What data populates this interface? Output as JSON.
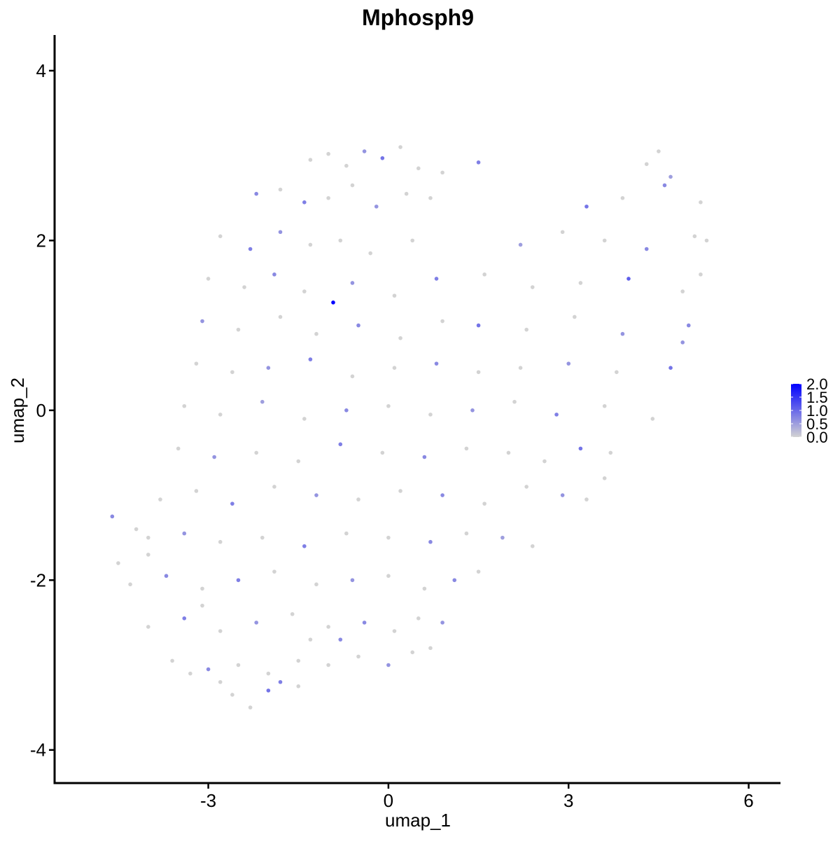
{
  "chart_data": {
    "type": "scatter",
    "title": "Mphosph9",
    "x_label": "umap_1",
    "y_label": "umap_2",
    "xlim": [
      -5.56,
      6.53
    ],
    "ylim": [
      -4.39,
      4.42
    ],
    "xticks": [
      -3,
      0,
      3,
      6
    ],
    "yticks": [
      -4,
      -2,
      0,
      2,
      4
    ],
    "x": [
      -1.3,
      -1.0,
      -0.7,
      -0.4,
      -0.1,
      0.2,
      0.5,
      0.9,
      4.3,
      4.5,
      4.7,
      1.5,
      -2.2,
      -1.8,
      -1.4,
      -1.0,
      -0.6,
      -0.2,
      0.3,
      0.7,
      3.3,
      3.9,
      4.6,
      5.2,
      -2.8,
      -2.3,
      -1.8,
      -1.3,
      -0.8,
      -0.3,
      0.4,
      2.2,
      2.9,
      3.6,
      4.3,
      5.1,
      -3.0,
      -2.4,
      -1.9,
      -1.4,
      -0.6,
      0.1,
      0.8,
      1.6,
      2.4,
      3.2,
      4.0,
      4.9,
      -3.1,
      -2.5,
      -1.8,
      -1.2,
      -0.5,
      0.2,
      0.9,
      1.5,
      2.3,
      3.1,
      3.9,
      5.0,
      -3.2,
      -2.6,
      -2.0,
      -1.3,
      -0.6,
      0.1,
      0.8,
      1.5,
      2.2,
      3.0,
      3.8,
      4.7,
      -3.4,
      -2.8,
      -2.1,
      -1.4,
      -0.7,
      0.0,
      0.7,
      1.4,
      2.1,
      2.8,
      3.6,
      4.4,
      -3.5,
      -2.9,
      -2.2,
      -1.5,
      -0.8,
      -0.1,
      0.6,
      1.3,
      2.0,
      2.6,
      3.2,
      3.7,
      -3.8,
      -3.2,
      -2.6,
      -1.9,
      -1.2,
      -0.5,
      0.2,
      0.9,
      1.6,
      2.3,
      2.9,
      3.3,
      -4.6,
      -4.0,
      -3.4,
      -2.8,
      -2.1,
      -1.4,
      -0.7,
      0.0,
      0.7,
      1.3,
      1.9,
      2.4,
      -4.3,
      -3.7,
      -3.1,
      -2.5,
      -1.9,
      -1.2,
      -0.6,
      0.0,
      0.6,
      1.1,
      1.5,
      -4.5,
      -4.0,
      -3.4,
      -2.8,
      -2.2,
      -1.6,
      -1.0,
      -0.4,
      0.1,
      0.5,
      0.9,
      -3.1,
      -1.3,
      -3.6,
      -3.0,
      -2.5,
      -2.0,
      -1.5,
      -1.0,
      -0.5,
      0.0,
      0.4,
      -2.8,
      -1.8,
      0.7,
      -2.6,
      -2.3,
      -2.0,
      -1.5,
      -3.3,
      -0.8,
      5.3,
      5.2,
      4.9,
      -4.2,
      -4.0,
      3.6,
      -0.92
    ],
    "y": [
      2.95,
      3.02,
      2.88,
      3.05,
      2.97,
      3.1,
      2.85,
      2.8,
      2.9,
      3.05,
      2.75,
      2.92,
      2.55,
      2.6,
      2.45,
      2.5,
      2.65,
      2.4,
      2.55,
      2.5,
      2.4,
      2.5,
      2.65,
      2.45,
      2.05,
      1.9,
      2.1,
      1.95,
      2.0,
      1.85,
      2.0,
      1.95,
      2.1,
      2.0,
      1.9,
      2.05,
      1.55,
      1.45,
      1.6,
      1.4,
      1.5,
      1.35,
      1.55,
      1.6,
      1.45,
      1.5,
      1.55,
      1.4,
      1.05,
      0.95,
      1.1,
      0.9,
      1.0,
      0.85,
      1.05,
      1.0,
      0.95,
      1.1,
      0.9,
      1.0,
      0.55,
      0.45,
      0.5,
      0.6,
      0.4,
      0.5,
      0.55,
      0.45,
      0.5,
      0.55,
      0.45,
      0.5,
      0.05,
      -0.05,
      0.1,
      -0.1,
      0.0,
      0.05,
      -0.05,
      0.0,
      0.1,
      -0.05,
      0.05,
      -0.1,
      -0.45,
      -0.55,
      -0.5,
      -0.6,
      -0.4,
      -0.5,
      -0.55,
      -0.45,
      -0.5,
      -0.6,
      -0.45,
      -0.5,
      -1.05,
      -0.95,
      -1.1,
      -0.9,
      -1.0,
      -1.05,
      -0.95,
      -1.0,
      -1.1,
      -0.9,
      -1.0,
      -1.05,
      -1.25,
      -1.5,
      -1.45,
      -1.55,
      -1.5,
      -1.6,
      -1.45,
      -1.5,
      -1.55,
      -1.45,
      -1.5,
      -1.6,
      -2.05,
      -1.95,
      -2.1,
      -2.0,
      -1.9,
      -2.05,
      -2.0,
      -1.95,
      -2.1,
      -2.0,
      -1.9,
      -1.8,
      -2.55,
      -2.45,
      -2.6,
      -2.5,
      -2.4,
      -2.55,
      -2.5,
      -2.6,
      -2.45,
      -2.5,
      -2.3,
      -2.7,
      -2.95,
      -3.05,
      -3.0,
      -3.1,
      -2.95,
      -3.0,
      -2.9,
      -3.0,
      -2.85,
      -3.2,
      -3.2,
      -2.8,
      -3.35,
      -3.5,
      -3.3,
      -3.25,
      -3.1,
      -2.7,
      2.0,
      1.6,
      0.8,
      -1.4,
      -1.7,
      -0.8,
      1.27
    ],
    "values": [
      0,
      0,
      0,
      0.6,
      0.9,
      0,
      0,
      0,
      0,
      0,
      0.5,
      0.8,
      0.7,
      0,
      0.8,
      0,
      0,
      0.6,
      0,
      0,
      0.9,
      0,
      0.7,
      0,
      0,
      0.8,
      0.6,
      0,
      0,
      0,
      0,
      0.5,
      0,
      0,
      0.7,
      0,
      0,
      0,
      0.7,
      0,
      0.6,
      0,
      0.8,
      0,
      0,
      0,
      1.1,
      0,
      0.6,
      0,
      0,
      0,
      0.7,
      0,
      0,
      0.9,
      0,
      0,
      0.6,
      0.7,
      0,
      0,
      0.6,
      0.8,
      0,
      0,
      0.7,
      0,
      0,
      0.6,
      0,
      0.9,
      0,
      0,
      0.5,
      0,
      0.7,
      0,
      0,
      0.6,
      0,
      0.8,
      0,
      0,
      0,
      0.6,
      0,
      0,
      0.8,
      0,
      0.7,
      0,
      0,
      0,
      0.9,
      0,
      0,
      0,
      0.8,
      0,
      0.6,
      0,
      0,
      0.7,
      0,
      0,
      0.6,
      0,
      0.7,
      0,
      0.6,
      0,
      0,
      0.8,
      0,
      0,
      0.7,
      0,
      0.5,
      0,
      0,
      0.7,
      0,
      0.8,
      0,
      0,
      0.6,
      0,
      0,
      0.7,
      0,
      0,
      0,
      0.8,
      0,
      0.6,
      0,
      0,
      0.7,
      0,
      0,
      0.6,
      0,
      0,
      0,
      0.7,
      0,
      0,
      0,
      0,
      0,
      0.6,
      0,
      0,
      0.8,
      0,
      0,
      0,
      0.9,
      0,
      0,
      0.7,
      0,
      0,
      0.6,
      0,
      0,
      0,
      2.0
    ],
    "colorbar": {
      "colors": [
        "#d3d3d3",
        "#0000ff"
      ],
      "lim": [
        0,
        2
      ],
      "ticks": [
        {
          "value": 2,
          "label": "2.0"
        },
        {
          "value": 1.5,
          "label": "1.5"
        },
        {
          "value": 1,
          "label": "1.0"
        },
        {
          "value": 0.5,
          "label": "0.5"
        },
        {
          "value": 0,
          "label": "0.0"
        }
      ]
    }
  }
}
